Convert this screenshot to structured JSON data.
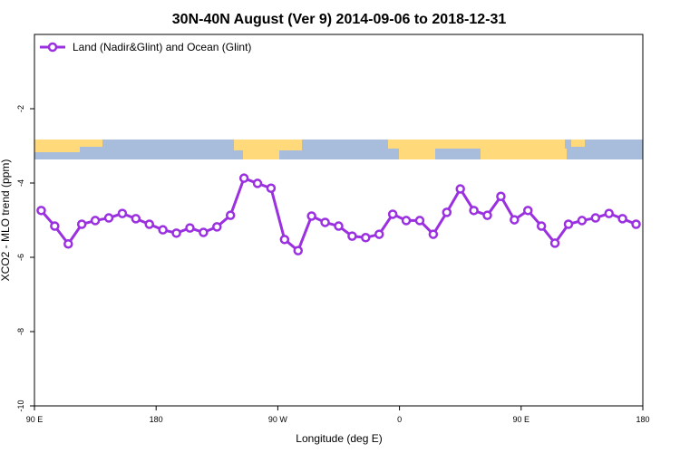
{
  "chart_data": {
    "type": "line",
    "title": "30N-40N August (Ver 9)   2014-09-06 to 2018-12-31",
    "xlabel": "Longitude (deg E)",
    "ylabel": "XCO2 - MLO trend (ppm)",
    "x": [
      95,
      105,
      115,
      125,
      135,
      145,
      155,
      165,
      175,
      185,
      195,
      205,
      215,
      225,
      235,
      245,
      255,
      265,
      275,
      285,
      295,
      305,
      315,
      325,
      335,
      345,
      355,
      365,
      375,
      385,
      395,
      405,
      415,
      425,
      435,
      445,
      455,
      465,
      475,
      485,
      495,
      505,
      515,
      525,
      535
    ],
    "series": [
      {
        "name": "Land (Nadir&Glint) and Ocean (Glint)",
        "color": "#9b30e0",
        "values": [
          -4.74,
          -5.16,
          -5.64,
          -5.11,
          -5.01,
          -4.94,
          -4.82,
          -4.96,
          -5.11,
          -5.26,
          -5.35,
          -5.21,
          -5.33,
          -5.18,
          -4.87,
          -3.87,
          -4.01,
          -4.14,
          -5.52,
          -5.82,
          -4.89,
          -5.06,
          -5.16,
          -5.43,
          -5.47,
          -5.38,
          -4.84,
          -5.01,
          -5.01,
          -5.38,
          -4.79,
          -4.16,
          -4.74,
          -4.87,
          -4.36,
          -4.99,
          -4.74,
          -5.16,
          -5.62,
          -5.11,
          -5.01,
          -4.94,
          -4.82,
          -4.96,
          -5.11
        ]
      }
    ],
    "xlim": [
      90,
      540
    ],
    "xticks": [
      {
        "value": 90,
        "label": "90 E"
      },
      180,
      {
        "value": 270,
        "label": "90 W"
      },
      {
        "value": 360,
        "label": "0"
      },
      {
        "value": 450,
        "label": "90 E"
      },
      {
        "value": 540,
        "label": "180"
      }
    ],
    "ylim": [
      -10,
      0
    ],
    "yticks": [
      -10,
      -8,
      -6,
      -4,
      -2
    ],
    "legend": "upper left"
  }
}
